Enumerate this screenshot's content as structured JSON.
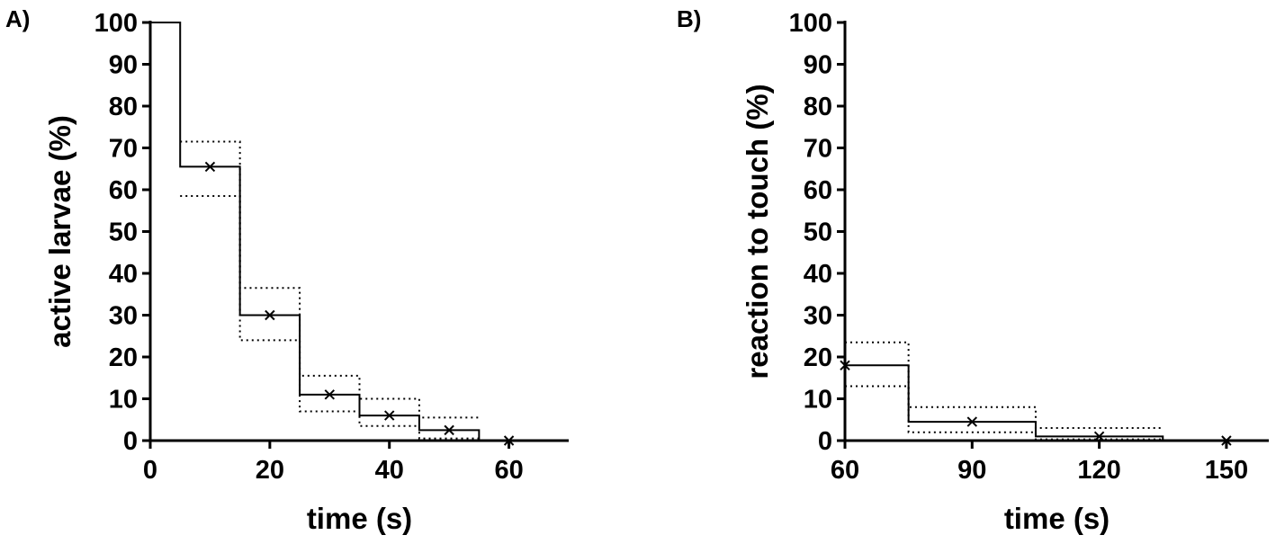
{
  "chart_data": [
    {
      "type": "line",
      "panel_label": "A)",
      "xlabel": "time (s)",
      "ylabel": "active larvae (%)",
      "xlim": [
        0,
        70
      ],
      "ylim": [
        0,
        100
      ],
      "xticks": [
        0,
        20,
        40,
        60
      ],
      "yticks": [
        0,
        10,
        20,
        30,
        40,
        50,
        60,
        70,
        80,
        90,
        100
      ],
      "grid": false,
      "step_x": [
        0,
        5,
        15,
        25,
        35,
        45,
        55
      ],
      "series": [
        {
          "style": "solid",
          "values": [
            100,
            65.5,
            30,
            11,
            6,
            2.5
          ]
        },
        {
          "style": "dotted",
          "values": [
            null,
            71.5,
            36.5,
            15.5,
            10,
            5.5
          ]
        },
        {
          "style": "dotted",
          "values": [
            null,
            58.5,
            24,
            7,
            3.5,
            0.5
          ]
        }
      ],
      "markers": {
        "x": [
          10,
          20,
          30,
          40,
          50,
          60
        ],
        "y": [
          65.5,
          30,
          11,
          6,
          2.5,
          0
        ]
      }
    },
    {
      "type": "line",
      "panel_label": "B)",
      "xlabel": "time (s)",
      "ylabel": "reaction to touch (%)",
      "xlim": [
        60,
        160
      ],
      "ylim": [
        0,
        100
      ],
      "xticks": [
        60,
        90,
        120,
        150
      ],
      "yticks": [
        0,
        10,
        20,
        30,
        40,
        50,
        60,
        70,
        80,
        90,
        100
      ],
      "grid": false,
      "step_x": [
        60,
        75,
        105,
        135
      ],
      "series": [
        {
          "style": "solid",
          "values": [
            18,
            4.5,
            1
          ]
        },
        {
          "style": "dotted",
          "values": [
            23.5,
            8,
            3
          ]
        },
        {
          "style": "dotted",
          "values": [
            13,
            2,
            0.3
          ]
        }
      ],
      "markers": {
        "x": [
          60,
          90,
          120,
          150
        ],
        "y": [
          18,
          4.5,
          1,
          0
        ]
      }
    }
  ]
}
